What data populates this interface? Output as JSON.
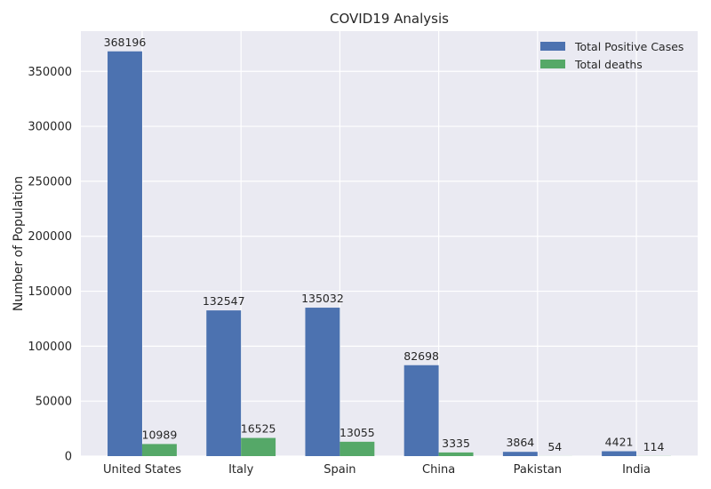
{
  "chart_data": {
    "type": "bar",
    "title": "COVID19 Analysis",
    "xlabel": "",
    "ylabel": "Number of Population",
    "categories": [
      "United States",
      "Italy",
      "Spain",
      "China",
      "Pakistan",
      "India"
    ],
    "series": [
      {
        "name": "Total Positive Cases",
        "color": "#4c72b0",
        "values": [
          368196,
          132547,
          135032,
          82698,
          3864,
          4421
        ]
      },
      {
        "name": "Total deaths",
        "color": "#55a868",
        "values": [
          10989,
          16525,
          13055,
          3335,
          54,
          114
        ]
      }
    ],
    "ylim": [
      0,
      386606
    ],
    "yticks": [
      0,
      50000,
      100000,
      150000,
      200000,
      250000,
      300000,
      350000
    ],
    "grid": true,
    "legend_position": "top-right",
    "background_color": "#eaeaf2"
  }
}
